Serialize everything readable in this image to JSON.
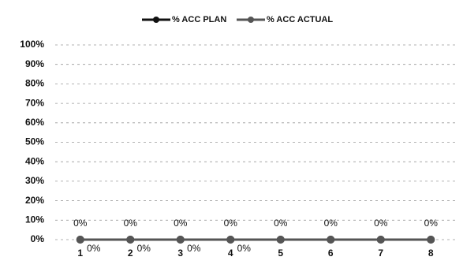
{
  "chart_data": {
    "type": "line",
    "categories": [
      "1",
      "2",
      "3",
      "4",
      "5",
      "6",
      "7",
      "8"
    ],
    "series": [
      {
        "name": "% ACC PLAN",
        "color": "#111111",
        "values": [
          0,
          0,
          0,
          0,
          0,
          0,
          0,
          0
        ],
        "value_labels": [
          "0%",
          "0%",
          "0%",
          "0%",
          "0%",
          "0%",
          "0%",
          "0%"
        ]
      },
      {
        "name": "% ACC ACTUAL",
        "color": "#555555",
        "values": [
          0,
          0,
          0,
          0,
          0,
          0,
          0,
          0
        ],
        "value_labels": [
          "0%",
          "0%",
          "0%",
          "0%",
          null,
          null,
          null,
          null
        ]
      }
    ],
    "ylim": [
      0,
      100
    ],
    "yticks": [
      {
        "value": 0,
        "label": "0%"
      },
      {
        "value": 10,
        "label": "10%"
      },
      {
        "value": 20,
        "label": "20%"
      },
      {
        "value": 30,
        "label": "30%"
      },
      {
        "value": 40,
        "label": "40%"
      },
      {
        "value": 50,
        "label": "50%"
      },
      {
        "value": 60,
        "label": "60%"
      },
      {
        "value": 70,
        "label": "70%"
      },
      {
        "value": 80,
        "label": "80%"
      },
      {
        "value": 90,
        "label": "90%"
      },
      {
        "value": 100,
        "label": "100%"
      }
    ],
    "grid": true,
    "legend": "top"
  }
}
